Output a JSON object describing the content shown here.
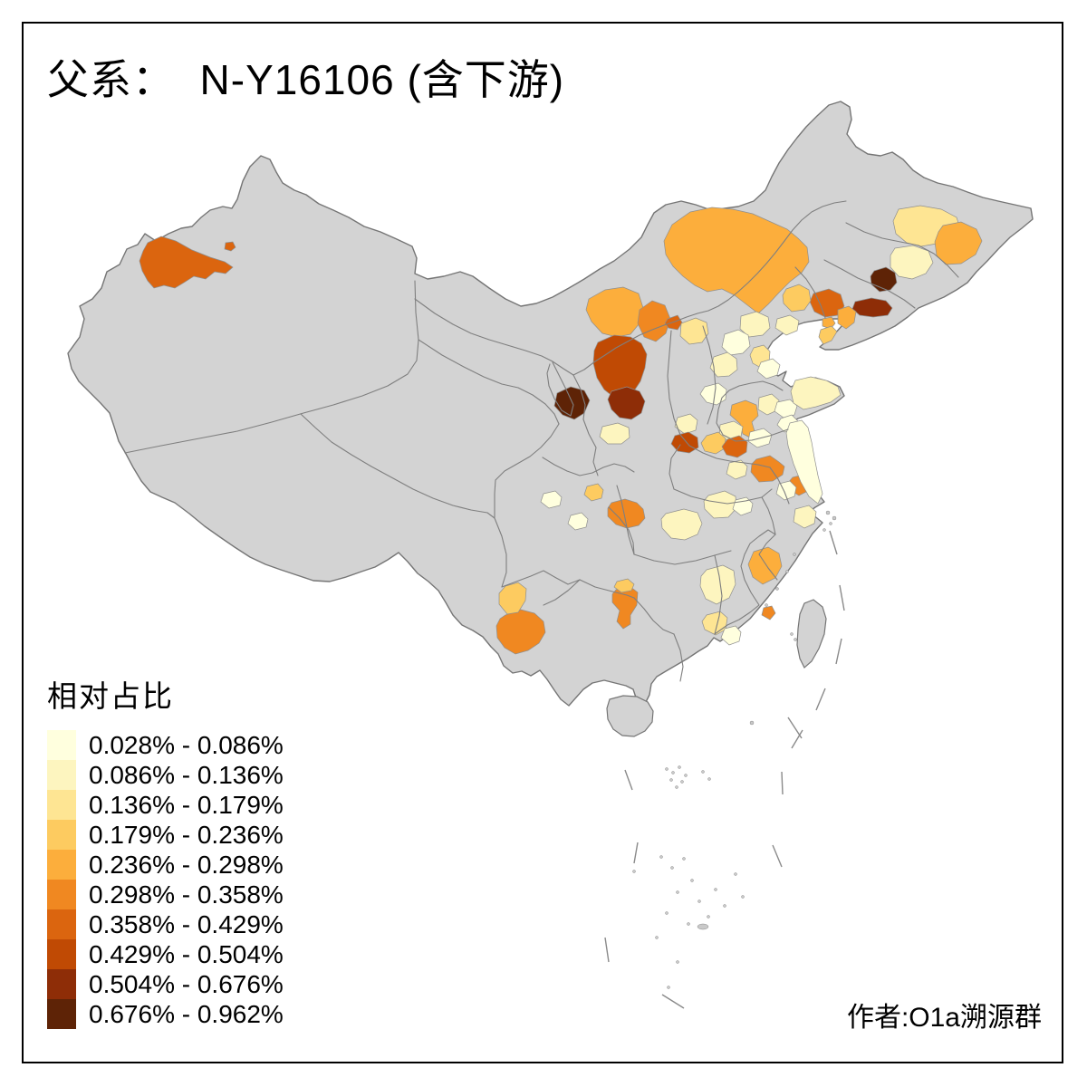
{
  "title": "父系：  N-Y16106 (含下游)",
  "attribution": "作者:O1a溯源群",
  "legend_title": "相对占比",
  "chart_data": {
    "type": "choropleth",
    "area": "China, prefecture level",
    "title": "父系：  N-Y16106 (含下游)",
    "legend_title": "相对占比",
    "bins": [
      "0.028% - 0.086%",
      "0.086% - 0.136%",
      "0.136% - 0.179%",
      "0.179% - 0.236%",
      "0.236% - 0.298%",
      "0.298% - 0.358%",
      "0.358% - 0.429%",
      "0.429% - 0.504%",
      "0.504% - 0.676%",
      "0.676% - 0.962%"
    ],
    "palette": [
      "#FFFFDE",
      "#FDF5BF",
      "#FEE593",
      "#FDCB60",
      "#FCAE3C",
      "#F08821",
      "#DB650F",
      "#C04A04",
      "#8E2D07",
      "#5E2306"
    ],
    "no_data_color": "#D3D3D3",
    "boundary_color": "#7F7F7F",
    "sea_color": "#FFFFFF",
    "regions": {
      "ili-valley-xinjiang": 7,
      "bortala-dot-xinjiang": 7,
      "xilingol-inner-mongolia": 5,
      "bayannur-baotou": 5,
      "hohhot-ulanqab": 6,
      "datong-area": 7,
      "yulin-shaanxi": 8,
      "yanan-shaanxi": 9,
      "wuzhong-ningxia": 10,
      "suihua-heilongjiang": 3,
      "harbin-heilongjiang": 5,
      "changchun-jilin": 2,
      "jilin-city": 10,
      "chaoyang-fuxin-liaoning": 7,
      "shenyang-fushun-liaoning": 9,
      "anshan-liaoyang": 5,
      "jinzhou-liaoning": 4,
      "yingkou-dot-liaoning": 5,
      "dalian-liaoning": 4,
      "zhangjiakou-hebei": 3,
      "chengde-hebei": 2,
      "beijing": 1,
      "baoding-hebei": 2,
      "tianjin": 3,
      "tangshan-qinhuangdao": 2,
      "cangzhou-hebei": 1,
      "shijiazhuang-hebei": 1,
      "jinan-shandong": 5,
      "zibo-shandong": 2,
      "weifang-shandong": 1,
      "yantai-peninsula-shandong": 2,
      "heze-jining-shandong": 2,
      "linyi-shandong": 1,
      "qingdao-shandong": 1,
      "linfen-shanxi": 2,
      "yuncheng-shanxi": 8,
      "luoyang-henan": 4,
      "zhengzhou-henan": 7,
      "huaibei-suzhou-anhui": 6,
      "huaian-jiangsu": 6,
      "xuchang-henan": 2,
      "nanyang-henan": 2,
      "zhumadian-henan": 1,
      "qingyang-gansu": 2,
      "guangyuan-sichuan": 4,
      "mianyang-sichuan": 1,
      "chengdu-sichuan": 1,
      "dazhou-chongqing": 6,
      "xiangyang-hubei": 2,
      "yancheng-coastal-jiangsu": 1,
      "hefei-anhui": 1,
      "jiaxing-huzhou": 2,
      "pingxiang-jiangxi": 2,
      "ganzhou-jiangxi": 3,
      "heyuan-guangdong": 1,
      "nanping-fujian": 5,
      "xiamen-dot-fujian": 6,
      "zunyi-guizhou": 6,
      "guiyang-guizhou": 4,
      "qujing-yunnan": 6,
      "chuxiong-yunnan": 4
    }
  }
}
